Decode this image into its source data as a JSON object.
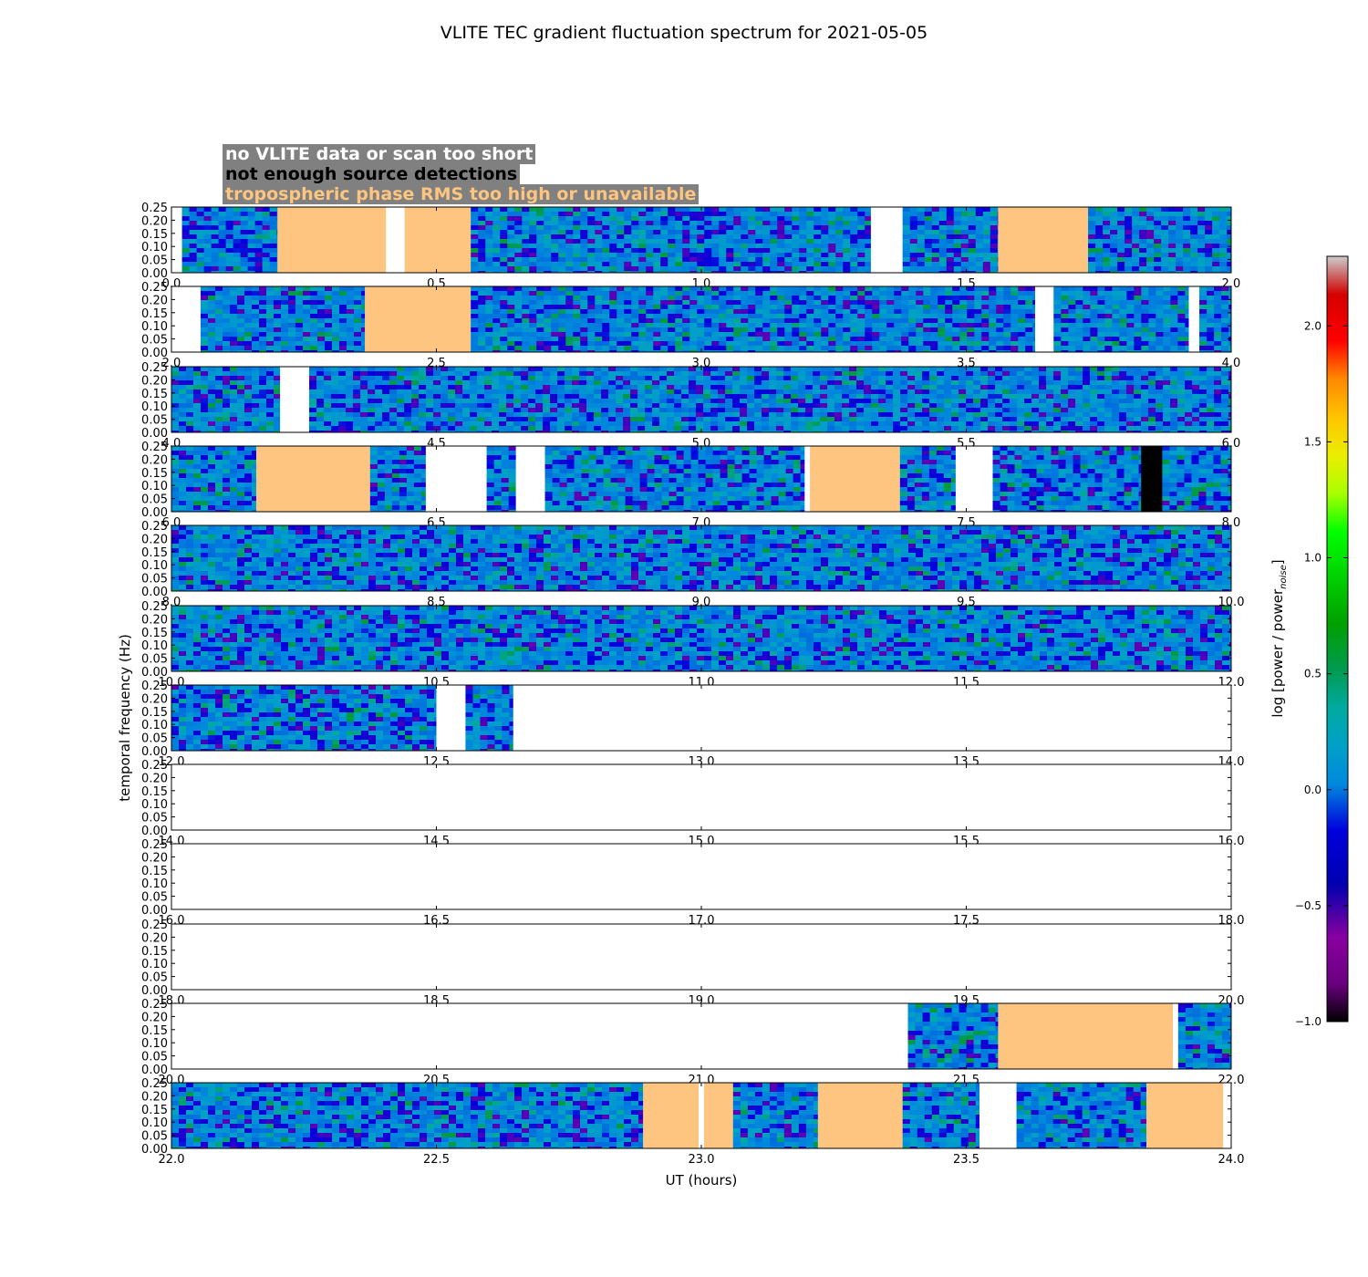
{
  "title": "VLITE TEC gradient fluctuation spectrum for 2021-05-05",
  "legend": {
    "no_data": "no VLITE data or scan too short",
    "no_detections": "not enough source detections",
    "tropo": "tropospheric phase RMS too high or unavailable"
  },
  "colors": {
    "no_data": "#ffffff",
    "no_detections": "#000000",
    "tropo": "#fdc57f",
    "legend_bg": "#808080"
  },
  "chart_data": {
    "type": "heatmap",
    "xlabel": "UT (hours)",
    "ylabel": "temporal frequency (Hz)",
    "ylim": [
      0,
      0.25
    ],
    "yticks": [
      "0.00",
      "0.05",
      "0.10",
      "0.15",
      "0.20",
      "0.25"
    ],
    "colorbar": {
      "label": "log [power / power_noise]",
      "range": [
        -1.0,
        2.3
      ],
      "ticks": [
        "−1.0",
        "−0.5",
        "0.0",
        "0.5",
        "1.0",
        "1.5",
        "2.0"
      ],
      "tick_values": [
        -1.0,
        -0.5,
        0.0,
        0.5,
        1.0,
        1.5,
        2.0
      ],
      "colormap": "nipy_spectral"
    },
    "panels": [
      {
        "xlim": [
          0.0,
          2.0
        ],
        "xticks": [
          "0.0",
          "0.5",
          "1.0",
          "1.5",
          "2.0"
        ],
        "segments": [
          {
            "from": 0.0,
            "to": 0.02,
            "state": "nodata"
          },
          {
            "from": 0.02,
            "to": 0.2,
            "state": "data"
          },
          {
            "from": 0.2,
            "to": 0.405,
            "state": "tropo"
          },
          {
            "from": 0.405,
            "to": 0.44,
            "state": "nodata"
          },
          {
            "from": 0.44,
            "to": 0.565,
            "state": "tropo"
          },
          {
            "from": 0.565,
            "to": 1.32,
            "state": "data"
          },
          {
            "from": 1.32,
            "to": 1.38,
            "state": "nodata"
          },
          {
            "from": 1.38,
            "to": 1.56,
            "state": "data"
          },
          {
            "from": 1.56,
            "to": 1.73,
            "state": "tropo"
          },
          {
            "from": 1.73,
            "to": 2.0,
            "state": "data"
          }
        ]
      },
      {
        "xlim": [
          2.0,
          4.0
        ],
        "xticks": [
          "2.0",
          "2.5",
          "3.0",
          "3.5",
          "4.0"
        ],
        "segments": [
          {
            "from": 2.0,
            "to": 2.055,
            "state": "nodata"
          },
          {
            "from": 2.055,
            "to": 2.365,
            "state": "data"
          },
          {
            "from": 2.365,
            "to": 2.565,
            "state": "tropo"
          },
          {
            "from": 2.565,
            "to": 3.63,
            "state": "data"
          },
          {
            "from": 3.63,
            "to": 3.665,
            "state": "nodata"
          },
          {
            "from": 3.665,
            "to": 3.92,
            "state": "data"
          },
          {
            "from": 3.92,
            "to": 3.94,
            "state": "nodata"
          },
          {
            "from": 3.94,
            "to": 4.0,
            "state": "data"
          }
        ]
      },
      {
        "xlim": [
          4.0,
          6.0
        ],
        "xticks": [
          "4.0",
          "4.5",
          "5.0",
          "5.5",
          "6.0"
        ],
        "segments": [
          {
            "from": 4.0,
            "to": 4.205,
            "state": "data"
          },
          {
            "from": 4.205,
            "to": 4.26,
            "state": "nodata"
          },
          {
            "from": 4.26,
            "to": 6.0,
            "state": "data"
          }
        ]
      },
      {
        "xlim": [
          6.0,
          8.0
        ],
        "xticks": [
          "6.0",
          "6.5",
          "7.0",
          "7.5",
          "8.0"
        ],
        "segments": [
          {
            "from": 6.0,
            "to": 6.16,
            "state": "data"
          },
          {
            "from": 6.16,
            "to": 6.375,
            "state": "tropo"
          },
          {
            "from": 6.375,
            "to": 6.48,
            "state": "data"
          },
          {
            "from": 6.48,
            "to": 6.595,
            "state": "nodata"
          },
          {
            "from": 6.595,
            "to": 6.65,
            "state": "data"
          },
          {
            "from": 6.65,
            "to": 6.705,
            "state": "nodata"
          },
          {
            "from": 6.705,
            "to": 7.195,
            "state": "data"
          },
          {
            "from": 7.195,
            "to": 7.205,
            "state": "nodata"
          },
          {
            "from": 7.205,
            "to": 7.375,
            "state": "tropo"
          },
          {
            "from": 7.375,
            "to": 7.48,
            "state": "data"
          },
          {
            "from": 7.48,
            "to": 7.55,
            "state": "nodata"
          },
          {
            "from": 7.55,
            "to": 7.83,
            "state": "data"
          },
          {
            "from": 7.83,
            "to": 7.87,
            "state": "nodetect"
          },
          {
            "from": 7.87,
            "to": 8.0,
            "state": "data"
          }
        ]
      },
      {
        "xlim": [
          8.0,
          10.0
        ],
        "xticks": [
          "8.0",
          "8.5",
          "9.0",
          "9.5",
          "10.0"
        ],
        "segments": [
          {
            "from": 8.0,
            "to": 10.0,
            "state": "data"
          }
        ]
      },
      {
        "xlim": [
          10.0,
          12.0
        ],
        "xticks": [
          "10.0",
          "10.5",
          "11.0",
          "11.5",
          "12.0"
        ],
        "segments": [
          {
            "from": 10.0,
            "to": 12.0,
            "state": "data"
          }
        ]
      },
      {
        "xlim": [
          12.0,
          14.0
        ],
        "xticks": [
          "12.0",
          "12.5",
          "13.0",
          "13.5",
          "14.0"
        ],
        "segments": [
          {
            "from": 12.0,
            "to": 12.5,
            "state": "data"
          },
          {
            "from": 12.5,
            "to": 12.555,
            "state": "nodata"
          },
          {
            "from": 12.555,
            "to": 12.645,
            "state": "data"
          },
          {
            "from": 12.645,
            "to": 14.0,
            "state": "nodata"
          }
        ]
      },
      {
        "xlim": [
          14.0,
          16.0
        ],
        "xticks": [
          "14.0",
          "14.5",
          "15.0",
          "15.5",
          "16.0"
        ],
        "segments": [
          {
            "from": 14.0,
            "to": 16.0,
            "state": "nodata"
          }
        ]
      },
      {
        "xlim": [
          16.0,
          18.0
        ],
        "xticks": [
          "16.0",
          "16.5",
          "17.0",
          "17.5",
          "18.0"
        ],
        "segments": [
          {
            "from": 16.0,
            "to": 18.0,
            "state": "nodata"
          }
        ]
      },
      {
        "xlim": [
          18.0,
          20.0
        ],
        "xticks": [
          "18.0",
          "18.5",
          "19.0",
          "19.5",
          "20.0"
        ],
        "segments": [
          {
            "from": 18.0,
            "to": 20.0,
            "state": "nodata"
          }
        ]
      },
      {
        "xlim": [
          20.0,
          22.0
        ],
        "xticks": [
          "20.0",
          "20.5",
          "21.0",
          "21.5",
          "22.0"
        ],
        "segments": [
          {
            "from": 20.0,
            "to": 21.39,
            "state": "nodata"
          },
          {
            "from": 21.39,
            "to": 21.56,
            "state": "data"
          },
          {
            "from": 21.56,
            "to": 21.89,
            "state": "tropo"
          },
          {
            "from": 21.89,
            "to": 21.9,
            "state": "nodata"
          },
          {
            "from": 21.9,
            "to": 22.0,
            "state": "data"
          }
        ]
      },
      {
        "xlim": [
          22.0,
          24.0
        ],
        "xticks": [
          "22.0",
          "22.5",
          "23.0",
          "23.5",
          "24.0"
        ],
        "segments": [
          {
            "from": 22.0,
            "to": 22.89,
            "state": "data"
          },
          {
            "from": 22.89,
            "to": 22.995,
            "state": "tropo"
          },
          {
            "from": 22.995,
            "to": 23.005,
            "state": "nodata"
          },
          {
            "from": 23.005,
            "to": 23.06,
            "state": "tropo"
          },
          {
            "from": 23.06,
            "to": 23.22,
            "state": "data"
          },
          {
            "from": 23.22,
            "to": 23.38,
            "state": "tropo"
          },
          {
            "from": 23.38,
            "to": 23.525,
            "state": "data"
          },
          {
            "from": 23.525,
            "to": 23.595,
            "state": "nodata"
          },
          {
            "from": 23.595,
            "to": 23.84,
            "state": "data"
          },
          {
            "from": 23.84,
            "to": 23.985,
            "state": "tropo"
          },
          {
            "from": 23.985,
            "to": 24.0,
            "state": "nodata"
          }
        ]
      }
    ]
  }
}
